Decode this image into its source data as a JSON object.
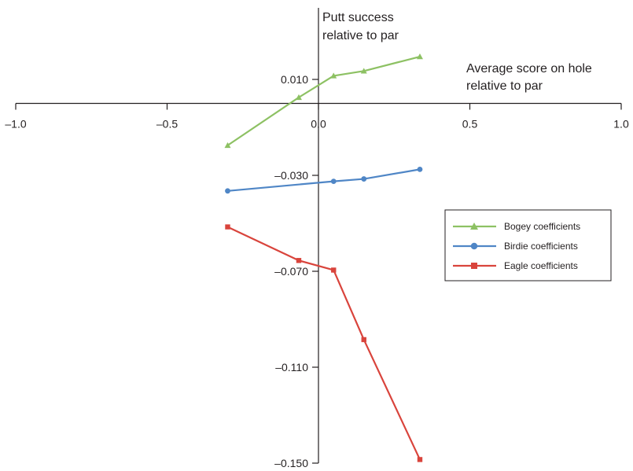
{
  "chart_data": {
    "type": "line",
    "x_axis_title_lines": [
      "Average score on hole",
      "relative to par"
    ],
    "y_axis_title_lines": [
      "Putt success",
      "relative to par"
    ],
    "xlim": [
      -1.0,
      1.0
    ],
    "ylim": [
      -0.15,
      0.02
    ],
    "x_ticks": [
      -1.0,
      -0.5,
      0.0,
      0.5,
      1.0
    ],
    "x_tick_labels": [
      "–1.0",
      "–0.5",
      "0.0",
      "0.5",
      "1.0"
    ],
    "y_ticks": [
      0.01,
      -0.03,
      -0.07,
      -0.11,
      -0.15
    ],
    "y_tick_labels": [
      "0.010",
      "–0.030",
      "–0.070",
      "–0.110",
      "–0.150"
    ],
    "grid": false,
    "legend_position": "right",
    "series": [
      {
        "name": "Bogey coefficients",
        "color": "#8dc163",
        "marker": "triangle",
        "x": [
          -0.3,
          -0.065,
          0.05,
          0.15,
          0.335
        ],
        "y": [
          -0.0175,
          0.0025,
          0.0115,
          0.0135,
          0.0195
        ]
      },
      {
        "name": "Birdie coefficients",
        "color": "#4f86c6",
        "marker": "circle",
        "x": [
          -0.3,
          0.05,
          0.15,
          0.335
        ],
        "y": [
          -0.0365,
          -0.0325,
          -0.0315,
          -0.0275
        ]
      },
      {
        "name": "Eagle coefficients",
        "color": "#d9443c",
        "marker": "square",
        "x": [
          -0.3,
          -0.065,
          0.05,
          0.15,
          0.335
        ],
        "y": [
          -0.0515,
          -0.0655,
          -0.0695,
          -0.0985,
          -0.1485
        ]
      }
    ]
  }
}
